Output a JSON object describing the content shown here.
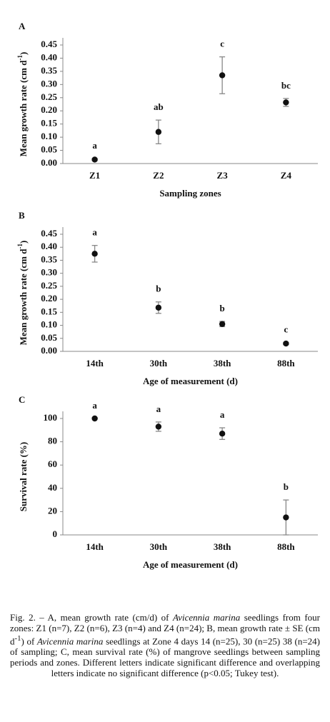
{
  "chart_data": [
    {
      "type": "errorpoint",
      "panel_label": "A",
      "ylabel": [
        "Mean growth rate (cm d",
        "-1",
        ")"
      ],
      "xlabel": "Sampling zones",
      "categories": [
        "Z1",
        "Z2",
        "Z3",
        "Z4"
      ],
      "values": [
        0.015,
        0.12,
        0.335,
        0.232
      ],
      "errors": [
        0.004,
        0.045,
        0.07,
        0.015
      ],
      "letters": [
        "a",
        "ab",
        "c",
        "bc"
      ],
      "ylim": [
        0,
        0.45
      ],
      "yticks": [
        {
          "value": 0,
          "label": "0.00"
        },
        {
          "value": 0.05,
          "label": "0.05"
        },
        {
          "value": 0.1,
          "label": "0.10"
        },
        {
          "value": 0.15,
          "label": "0.15"
        },
        {
          "value": 0.2,
          "label": "0.20"
        },
        {
          "value": 0.25,
          "label": "0.25"
        },
        {
          "value": 0.3,
          "label": "0.30"
        },
        {
          "value": 0.35,
          "label": "0.35"
        },
        {
          "value": 0.4,
          "label": "0.40"
        },
        {
          "value": 0.45,
          "label": "0.45"
        }
      ],
      "color": "#111111"
    },
    {
      "type": "errorpoint",
      "panel_label": "B",
      "ylabel": [
        "Mean growth rate (cm d",
        "-1",
        ")"
      ],
      "xlabel": "Age of measurement (d)",
      "categories": [
        "14th",
        "30th",
        "38th",
        "88th"
      ],
      "values": [
        0.375,
        0.168,
        0.105,
        0.03
      ],
      "errors": [
        0.032,
        0.022,
        0.01,
        0.004
      ],
      "letters": [
        "a",
        "b",
        "b",
        "c"
      ],
      "ylim": [
        0,
        0.45
      ],
      "yticks": [
        {
          "value": 0,
          "label": "0.00"
        },
        {
          "value": 0.05,
          "label": "0.05"
        },
        {
          "value": 0.1,
          "label": "0.10"
        },
        {
          "value": 0.15,
          "label": "0.15"
        },
        {
          "value": 0.2,
          "label": "0.20"
        },
        {
          "value": 0.25,
          "label": "0.25"
        },
        {
          "value": 0.3,
          "label": "0.30"
        },
        {
          "value": 0.35,
          "label": "0.35"
        },
        {
          "value": 0.4,
          "label": "0.40"
        },
        {
          "value": 0.45,
          "label": "0.45"
        }
      ],
      "color": "#111111"
    },
    {
      "type": "errorpoint",
      "panel_label": "C",
      "ylabel": [
        "Survival rate (%)"
      ],
      "xlabel": "Age of measurement (d)",
      "categories": [
        "14th",
        "30th",
        "38th",
        "88th"
      ],
      "values": [
        100,
        93,
        87,
        15
      ],
      "errors": [
        0,
        4,
        5,
        15
      ],
      "letters": [
        "a",
        "a",
        "a",
        "b"
      ],
      "ylim": [
        0,
        100
      ],
      "yticks": [
        0,
        20,
        40,
        60,
        80,
        100
      ],
      "color": "#111111"
    }
  ],
  "caption": [
    "Fig. 2. – A, mean growth rate (cm/d) of ",
    "Avicennia marina",
    " seedlings from four zones: Z1 (n=7), Z2 (n=6), Z3 (n=4) and Z4 (n=24); B, mean growth rate ± SE (cm d",
    "-1",
    ") of ",
    "Avicennia marina",
    " seedlings at Zone 4 days 14 (n=25), 30 (n=25) 38 (n=24) of sampling; C, mean survival rate (%) of mangrove seedlings between sampling periods and zones. Different letters indicate significant difference and overlapping letters indicate no significant difference (p<0.05; Tukey test)."
  ]
}
